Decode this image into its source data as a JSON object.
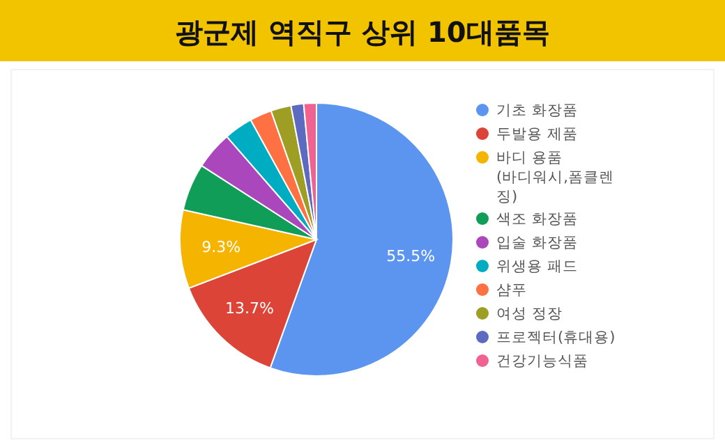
{
  "chart_data": {
    "type": "pie",
    "title": "광군제 역직구 상위 10대품목",
    "categories": [
      "기초 화장품",
      "두발용 제품",
      "바디 용품 (바디워시,폼클렌징)",
      "색조 화장품",
      "입술 화장품",
      "위생용 패드",
      "샴푸",
      "여성 정장",
      "프로젝터(휴대용)",
      "건강기능식품"
    ],
    "values": [
      55.5,
      13.7,
      9.3,
      5.6,
      4.5,
      3.4,
      2.6,
      2.4,
      1.5,
      1.5
    ],
    "value_labels": [
      "55.5%",
      "13.7%",
      "9.3%",
      null,
      null,
      null,
      null,
      null,
      null,
      null
    ],
    "colors": [
      "#5b95f0",
      "#db4437",
      "#f4b400",
      "#0f9d58",
      "#ab47bc",
      "#00acc1",
      "#ff7043",
      "#9e9d24",
      "#5c6bc0",
      "#f06292"
    ],
    "legend": "right"
  }
}
